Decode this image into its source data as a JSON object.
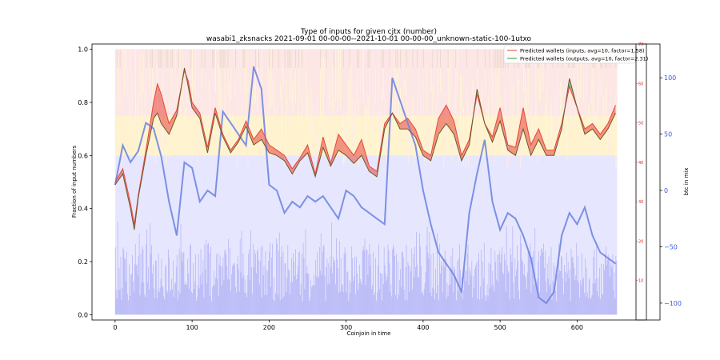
{
  "chart_data": {
    "type": "line",
    "title": "Type of inputs for given cjtx (number)",
    "subtitle": "wasabi1_zksnacks 2021-09-01 00-00-00--2021-10-01 00-00-00_unknown-static-100-1utxo",
    "xlabel": "Coinjoin in time",
    "ylabel": "Fraction of input numbers",
    "y2label": "btc in mix",
    "xlim": [
      -30,
      690
    ],
    "ylim": [
      -0.02,
      1.02
    ],
    "y2lim": [
      -115,
      130
    ],
    "y3lim": [
      0,
      70
    ],
    "xticks": [
      "0",
      "100",
      "200",
      "300",
      "400",
      "500",
      "600"
    ],
    "yticks": [
      "0.0",
      "0.2",
      "0.4",
      "0.6",
      "0.8",
      "1.0"
    ],
    "y2ticks": [
      "−100",
      "−50",
      "0",
      "50",
      "100"
    ],
    "y3ticks": [
      "10",
      "20",
      "30",
      "40",
      "50",
      "60",
      "70"
    ],
    "legend_position": "top-right",
    "legend": [
      {
        "label": "Predicted wallets (inputs, avg=10, factor=1.58)",
        "color": "#e8463a"
      },
      {
        "label": "Predicted wallets (outputs, avg=10, factor=2.31)",
        "color": "#3c9a3c"
      }
    ],
    "series_inputs": {
      "name": "Predicted wallets (inputs, avg=10, factor=1.58)",
      "x": [
        0,
        10,
        20,
        25,
        30,
        40,
        50,
        55,
        60,
        70,
        80,
        90,
        95,
        100,
        110,
        120,
        130,
        140,
        150,
        160,
        170,
        180,
        190,
        200,
        210,
        220,
        230,
        240,
        250,
        260,
        270,
        280,
        290,
        300,
        310,
        320,
        330,
        340,
        350,
        360,
        370,
        380,
        390,
        400,
        410,
        420,
        430,
        440,
        450,
        460,
        470,
        480,
        490,
        500,
        510,
        520,
        530,
        540,
        550,
        560,
        570,
        580,
        590,
        600,
        610,
        620,
        630,
        640,
        650
      ],
      "values": [
        0.5,
        0.55,
        0.42,
        0.34,
        0.45,
        0.62,
        0.8,
        0.87,
        0.83,
        0.72,
        0.77,
        0.92,
        0.88,
        0.8,
        0.76,
        0.63,
        0.78,
        0.68,
        0.62,
        0.66,
        0.73,
        0.66,
        0.7,
        0.64,
        0.62,
        0.6,
        0.55,
        0.59,
        0.64,
        0.53,
        0.67,
        0.57,
        0.68,
        0.64,
        0.6,
        0.66,
        0.56,
        0.54,
        0.72,
        0.76,
        0.72,
        0.74,
        0.7,
        0.62,
        0.6,
        0.74,
        0.79,
        0.73,
        0.6,
        0.66,
        0.83,
        0.72,
        0.67,
        0.78,
        0.64,
        0.63,
        0.78,
        0.64,
        0.7,
        0.62,
        0.62,
        0.72,
        0.86,
        0.78,
        0.7,
        0.72,
        0.68,
        0.72,
        0.79
      ]
    },
    "series_outputs": {
      "name": "Predicted wallets (outputs, avg=10, factor=2.31)",
      "x": [
        0,
        10,
        20,
        25,
        30,
        40,
        50,
        55,
        60,
        70,
        80,
        90,
        95,
        100,
        110,
        120,
        130,
        140,
        150,
        160,
        170,
        180,
        190,
        200,
        210,
        220,
        230,
        240,
        250,
        260,
        270,
        280,
        290,
        300,
        310,
        320,
        330,
        340,
        350,
        360,
        370,
        380,
        390,
        400,
        410,
        420,
        430,
        440,
        450,
        460,
        470,
        480,
        490,
        500,
        510,
        520,
        530,
        540,
        550,
        560,
        570,
        580,
        590,
        600,
        610,
        620,
        630,
        640,
        650
      ],
      "values": [
        0.49,
        0.53,
        0.4,
        0.32,
        0.44,
        0.6,
        0.74,
        0.76,
        0.72,
        0.68,
        0.75,
        0.93,
        0.86,
        0.78,
        0.74,
        0.61,
        0.76,
        0.67,
        0.61,
        0.65,
        0.71,
        0.64,
        0.66,
        0.61,
        0.6,
        0.58,
        0.53,
        0.58,
        0.61,
        0.52,
        0.63,
        0.56,
        0.62,
        0.6,
        0.57,
        0.6,
        0.54,
        0.52,
        0.7,
        0.76,
        0.7,
        0.7,
        0.67,
        0.6,
        0.58,
        0.68,
        0.72,
        0.68,
        0.58,
        0.64,
        0.85,
        0.72,
        0.65,
        0.73,
        0.62,
        0.6,
        0.7,
        0.6,
        0.66,
        0.6,
        0.6,
        0.7,
        0.89,
        0.78,
        0.68,
        0.7,
        0.66,
        0.7,
        0.76
      ]
    },
    "series_btc": {
      "name": "btc in mix",
      "x": [
        0,
        10,
        20,
        30,
        40,
        50,
        60,
        70,
        80,
        90,
        100,
        110,
        120,
        130,
        140,
        150,
        160,
        170,
        180,
        190,
        200,
        210,
        220,
        230,
        240,
        250,
        260,
        270,
        280,
        290,
        300,
        310,
        320,
        330,
        340,
        350,
        360,
        370,
        380,
        390,
        400,
        410,
        420,
        430,
        440,
        450,
        460,
        470,
        480,
        490,
        500,
        510,
        520,
        530,
        540,
        550,
        560,
        570,
        580,
        590,
        600,
        610,
        620,
        630,
        640,
        650
      ],
      "values": [
        5,
        40,
        25,
        35,
        60,
        55,
        30,
        -10,
        -40,
        25,
        20,
        -10,
        0,
        -5,
        70,
        60,
        50,
        40,
        110,
        90,
        5,
        0,
        -20,
        -10,
        -15,
        -5,
        -10,
        -5,
        -15,
        -25,
        0,
        -5,
        -15,
        -20,
        -25,
        -30,
        100,
        80,
        60,
        40,
        0,
        -30,
        -55,
        -65,
        -75,
        -90,
        -20,
        15,
        45,
        -10,
        -35,
        -20,
        -25,
        -40,
        -60,
        -95,
        -100,
        -90,
        -40,
        -20,
        -30,
        -15,
        -40,
        -55,
        -60,
        -65
      ]
    },
    "background_bands": [
      "#b9b9f5",
      "#e6e6ff",
      "#fff3cf",
      "#fde6e6"
    ]
  }
}
